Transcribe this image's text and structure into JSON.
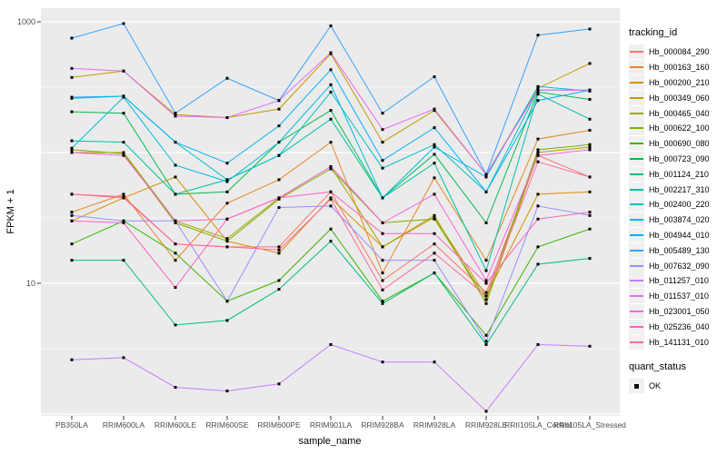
{
  "chart_data": {
    "type": "line",
    "title": "",
    "xlabel": "sample_name",
    "ylabel": "FPKM + 1",
    "y_scale": "log10",
    "ylim": [
      1,
      1270
    ],
    "y_ticks": [
      1000,
      10
    ],
    "y_tick_labels": [
      "1000",
      "10"
    ],
    "grid": "on",
    "panel_bg": "#EBEBEB",
    "grid_color": "#FFFFFF",
    "point_color": "#000000",
    "point_shape": "square",
    "legend": {
      "position": "right",
      "color_title": "tracking_id",
      "shape_title": "quant_status",
      "shape_items": [
        {
          "label": "OK",
          "shape": "black-square"
        }
      ]
    },
    "categories": [
      "PB350LA",
      "RRIM600LA",
      "RRIM600LE",
      "RRIM600SE",
      "RRIM600PE",
      "RRIM901LA",
      "RRIM928BA",
      "RRIM928LA",
      "RRIM928LE",
      "RRII105LA_Control",
      "RRII105LA_Stressed"
    ],
    "series": [
      {
        "name": "Hb_000084_290",
        "color": "#F8766D",
        "values": [
          48,
          46,
          20,
          19,
          19,
          50,
          10.5,
          20,
          8.5,
          95,
          65
        ]
      },
      {
        "name": "Hb_000163_160",
        "color": "#E88526",
        "values": [
          35,
          48,
          15,
          41,
          62,
          120,
          12,
          64,
          15,
          127,
          148
        ]
      },
      {
        "name": "Hb_000200_210",
        "color": "#D89000",
        "values": [
          30,
          45,
          65,
          21,
          17,
          45,
          19,
          32,
          8,
          48,
          50
        ]
      },
      {
        "name": "Hb_000349_060",
        "color": "#C09B00",
        "values": [
          375,
          420,
          195,
          185,
          215,
          570,
          120,
          210,
          68,
          310,
          480
        ]
      },
      {
        "name": "Hb_000465_040",
        "color": "#A3A500",
        "values": [
          100,
          100,
          30,
          22,
          45,
          78,
          19,
          33,
          7,
          100,
          110
        ]
      },
      {
        "name": "Hb_000622_100",
        "color": "#7CAE00",
        "values": [
          105,
          98,
          29,
          21,
          44,
          75,
          29,
          31,
          7.5,
          105,
          115
        ]
      },
      {
        "name": "Hb_000690_080",
        "color": "#39B600",
        "values": [
          20,
          30,
          17,
          7.3,
          10.5,
          26,
          7.3,
          12,
          4,
          19,
          26
        ]
      },
      {
        "name": "Hb_000723_090",
        "color": "#00BB4E",
        "values": [
          205,
          200,
          48,
          50,
          120,
          210,
          45,
          97,
          29,
          290,
          255
        ]
      },
      {
        "name": "Hb_001124_210",
        "color": "#00BF7D",
        "values": [
          15,
          15,
          4.8,
          5.2,
          9,
          21,
          7,
          12,
          3.4,
          14,
          15.5
        ]
      },
      {
        "name": "Hb_002217_310",
        "color": "#00C1A3",
        "values": [
          123,
          120,
          48,
          62,
          95,
          180,
          45,
          83,
          12.5,
          280,
          180
        ]
      },
      {
        "name": "Hb_002400_220",
        "color": "#00BFC4",
        "values": [
          260,
          270,
          120,
          62,
          95,
          290,
          76,
          115,
          50,
          300,
          300
        ]
      },
      {
        "name": "Hb_003874_020",
        "color": "#00BAE0",
        "values": [
          108,
          265,
          80,
          60,
          120,
          330,
          45,
          110,
          65,
          320,
          295
        ]
      },
      {
        "name": "Hb_004944_010",
        "color": "#00B0F6",
        "values": [
          265,
          270,
          120,
          83,
          160,
          430,
          87,
          155,
          50,
          250,
          300
        ]
      },
      {
        "name": "Hb_005489_130",
        "color": "#35A2FF",
        "values": [
          750,
          970,
          200,
          370,
          250,
          930,
          200,
          380,
          68,
          790,
          880
        ]
      },
      {
        "name": "Hb_007632_090",
        "color": "#9590FF",
        "values": [
          33,
          30,
          30,
          7.3,
          38,
          39,
          15,
          15,
          3.6,
          39,
          33
        ]
      },
      {
        "name": "Hb_011257_010",
        "color": "#C77CFF",
        "values": [
          2.6,
          2.7,
          1.6,
          1.5,
          1.7,
          3.4,
          2.5,
          2.5,
          1.05,
          3.4,
          3.3
        ]
      },
      {
        "name": "Hb_011537_010",
        "color": "#E76BF3",
        "values": [
          440,
          420,
          190,
          185,
          250,
          580,
          150,
          215,
          68,
          300,
          300
        ]
      },
      {
        "name": "Hb_023001_050",
        "color": "#FA62DB",
        "values": [
          100,
          95,
          30,
          31,
          45,
          78,
          29,
          48,
          10.5,
          95,
          105
        ]
      },
      {
        "name": "Hb_025236_040",
        "color": "#FF62BC",
        "values": [
          30,
          29,
          9.3,
          31,
          45,
          50,
          24,
          24,
          10,
          31,
          35
        ]
      },
      {
        "name": "Hb_141131_010",
        "color": "#FF6A98",
        "values": [
          48,
          45,
          20,
          19,
          18,
          44,
          8.9,
          17,
          8,
          85,
          65
        ]
      }
    ]
  }
}
